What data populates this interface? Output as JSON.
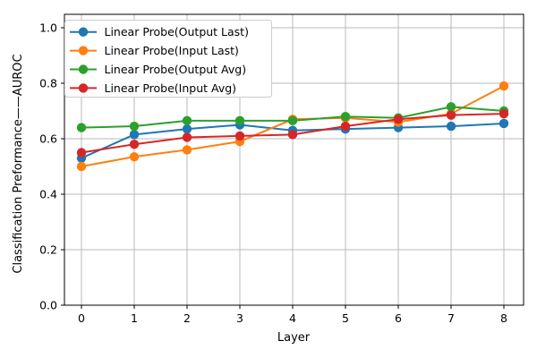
{
  "background": "#ffffff",
  "chart_data": {
    "type": "line",
    "title": "",
    "xlabel": "Layer",
    "ylabel": "Classification Preformance——AUROC",
    "x": [
      0,
      1,
      2,
      3,
      4,
      5,
      6,
      7,
      8
    ],
    "xtick_labels": [
      "0",
      "1",
      "2",
      "3",
      "4",
      "5",
      "6",
      "7",
      "8"
    ],
    "ytick_labels": [
      "0.0",
      "0.2",
      "0.4",
      "0.6",
      "0.8",
      "1.0"
    ],
    "xlim": [
      -0.35,
      8.4
    ],
    "ylim": [
      0.0,
      1.05
    ],
    "grid": true,
    "grid_color": "#b9b9b9",
    "legend": {
      "position": "upper left",
      "frame_color": "#cccccc"
    },
    "series": [
      {
        "name": "Linear Probe(Output Last)",
        "color": "#1f77b4",
        "marker": "circle",
        "values": [
          0.53,
          0.615,
          0.635,
          0.65,
          0.63,
          0.635,
          0.64,
          0.645,
          0.655
        ]
      },
      {
        "name": "Linear Probe(Input Last)",
        "color": "#ff7f0e",
        "marker": "circle",
        "values": [
          0.5,
          0.535,
          0.56,
          0.59,
          0.67,
          0.675,
          0.66,
          0.69,
          0.79
        ]
      },
      {
        "name": "Linear Probe(Output Avg)",
        "color": "#2ca02c",
        "marker": "circle",
        "values": [
          0.64,
          0.645,
          0.665,
          0.665,
          0.665,
          0.68,
          0.675,
          0.715,
          0.7
        ]
      },
      {
        "name": "Linear Probe(Input Avg)",
        "color": "#d62728",
        "marker": "circle",
        "values": [
          0.55,
          0.58,
          0.605,
          0.61,
          0.615,
          0.645,
          0.67,
          0.685,
          0.69
        ]
      }
    ]
  }
}
